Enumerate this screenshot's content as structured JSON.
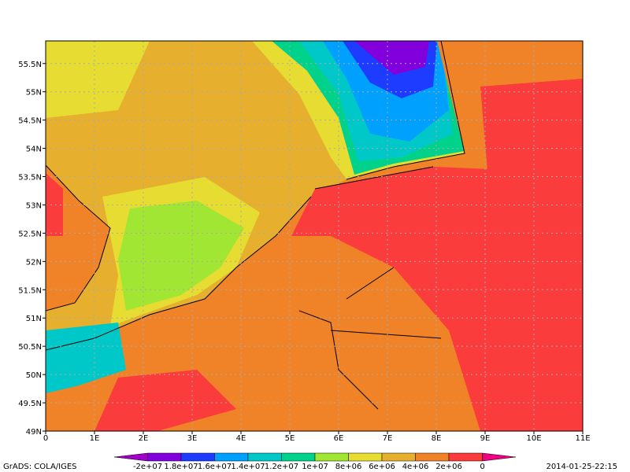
{
  "map": {
    "xlim": [
      0,
      11
    ],
    "ylim": [
      49,
      55.9
    ],
    "xticks": [
      {
        "value": 0,
        "label": "0"
      },
      {
        "value": 1,
        "label": "1E"
      },
      {
        "value": 2,
        "label": "2E"
      },
      {
        "value": 3,
        "label": "3E"
      },
      {
        "value": 4,
        "label": "4E"
      },
      {
        "value": 5,
        "label": "5E"
      },
      {
        "value": 6,
        "label": "6E"
      },
      {
        "value": 7,
        "label": "7E"
      },
      {
        "value": 8,
        "label": "8E"
      },
      {
        "value": 9,
        "label": "9E"
      },
      {
        "value": 10,
        "label": "10E"
      },
      {
        "value": 11,
        "label": "11E"
      }
    ],
    "yticks": [
      {
        "value": 49,
        "label": "49N"
      },
      {
        "value": 49.5,
        "label": "49.5N"
      },
      {
        "value": 50,
        "label": "50N"
      },
      {
        "value": 50.5,
        "label": "50.5N"
      },
      {
        "value": 51,
        "label": "51N"
      },
      {
        "value": 51.5,
        "label": "51.5N"
      },
      {
        "value": 52,
        "label": "52N"
      },
      {
        "value": 52.5,
        "label": "52.5N"
      },
      {
        "value": 53,
        "label": "53N"
      },
      {
        "value": 53.5,
        "label": "53.5N"
      },
      {
        "value": 54,
        "label": "54N"
      },
      {
        "value": 54.5,
        "label": "54.5N"
      },
      {
        "value": 55,
        "label": "55N"
      },
      {
        "value": 55.5,
        "label": "55.5N"
      }
    ],
    "grid": true,
    "colorbar": {
      "colors": [
        "#a000c8",
        "#8200dc",
        "#1e3cff",
        "#00a0ff",
        "#00c8c8",
        "#00d28c",
        "#a0e632",
        "#e6dc32",
        "#e6af2d",
        "#f08228",
        "#fa3c3c",
        "#f00082"
      ],
      "labels": [
        "-2e+07",
        "1.8e+07",
        "1.6e+07",
        "1.4e+07",
        "1.2e+07",
        "1e+07",
        "8e+06",
        "6e+06",
        "4e+06",
        "2e+06",
        "0"
      ]
    },
    "credit": "GrADS: COLA/IGES",
    "timestamp": "2014-01-25-22:15"
  }
}
